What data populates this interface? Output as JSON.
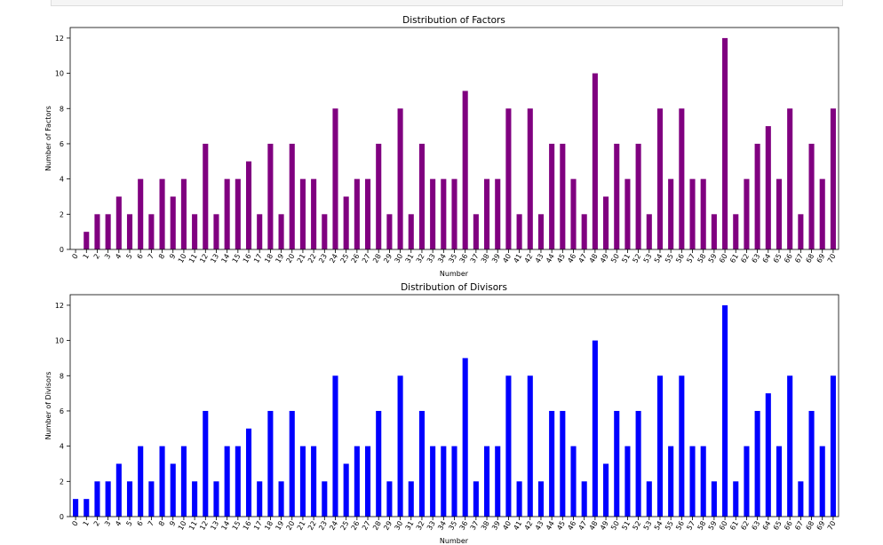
{
  "chart_data": [
    {
      "type": "bar",
      "title": "Distribution of Factors",
      "xlabel": "Number",
      "ylabel": "Number of Factors",
      "ylim": [
        0,
        12.6
      ],
      "yticks": [
        0,
        2,
        4,
        6,
        8,
        10,
        12
      ],
      "color": "#800080",
      "categories": [
        "0",
        "1",
        "2",
        "3",
        "4",
        "5",
        "6",
        "7",
        "8",
        "9",
        "10",
        "11",
        "12",
        "13",
        "14",
        "15",
        "16",
        "17",
        "18",
        "19",
        "20",
        "21",
        "22",
        "23",
        "24",
        "25",
        "26",
        "27",
        "28",
        "29",
        "30",
        "31",
        "32",
        "33",
        "34",
        "35",
        "36",
        "37",
        "38",
        "39",
        "40",
        "41",
        "42",
        "43",
        "44",
        "45",
        "46",
        "47",
        "48",
        "49",
        "50",
        "51",
        "52",
        "53",
        "54",
        "55",
        "56",
        "57",
        "58",
        "59",
        "60",
        "61",
        "62",
        "63",
        "64",
        "65",
        "66",
        "67",
        "68",
        "69",
        "70"
      ],
      "values": [
        0,
        1,
        2,
        2,
        3,
        2,
        4,
        2,
        4,
        3,
        4,
        2,
        6,
        2,
        4,
        4,
        5,
        2,
        6,
        2,
        6,
        4,
        4,
        2,
        8,
        3,
        4,
        4,
        6,
        2,
        8,
        2,
        6,
        4,
        4,
        4,
        9,
        2,
        4,
        4,
        8,
        2,
        8,
        2,
        6,
        6,
        4,
        2,
        10,
        3,
        6,
        4,
        6,
        2,
        8,
        4,
        8,
        4,
        4,
        2,
        12,
        2,
        4,
        6,
        7,
        4,
        8,
        2,
        6,
        4,
        8
      ]
    },
    {
      "type": "bar",
      "title": "Distribution of Divisors",
      "xlabel": "Number",
      "ylabel": "Number of Divisors",
      "ylim": [
        0,
        12.6
      ],
      "yticks": [
        0,
        2,
        4,
        6,
        8,
        10,
        12
      ],
      "color": "#0000ff",
      "categories": [
        "0",
        "1",
        "2",
        "3",
        "4",
        "5",
        "6",
        "7",
        "8",
        "9",
        "10",
        "11",
        "12",
        "13",
        "14",
        "15",
        "16",
        "17",
        "18",
        "19",
        "20",
        "21",
        "22",
        "23",
        "24",
        "25",
        "26",
        "27",
        "28",
        "29",
        "30",
        "31",
        "32",
        "33",
        "34",
        "35",
        "36",
        "37",
        "38",
        "39",
        "40",
        "41",
        "42",
        "43",
        "44",
        "45",
        "46",
        "47",
        "48",
        "49",
        "50",
        "51",
        "52",
        "53",
        "54",
        "55",
        "56",
        "57",
        "58",
        "59",
        "60",
        "61",
        "62",
        "63",
        "64",
        "65",
        "66",
        "67",
        "68",
        "69",
        "70"
      ],
      "values": [
        1,
        1,
        2,
        2,
        3,
        2,
        4,
        2,
        4,
        3,
        4,
        2,
        6,
        2,
        4,
        4,
        5,
        2,
        6,
        2,
        6,
        4,
        4,
        2,
        8,
        3,
        4,
        4,
        6,
        2,
        8,
        2,
        6,
        4,
        4,
        4,
        9,
        2,
        4,
        4,
        8,
        2,
        8,
        2,
        6,
        6,
        4,
        2,
        10,
        3,
        6,
        4,
        6,
        2,
        8,
        4,
        8,
        4,
        4,
        2,
        12,
        2,
        4,
        6,
        7,
        4,
        8,
        2,
        6,
        4,
        8
      ]
    }
  ]
}
